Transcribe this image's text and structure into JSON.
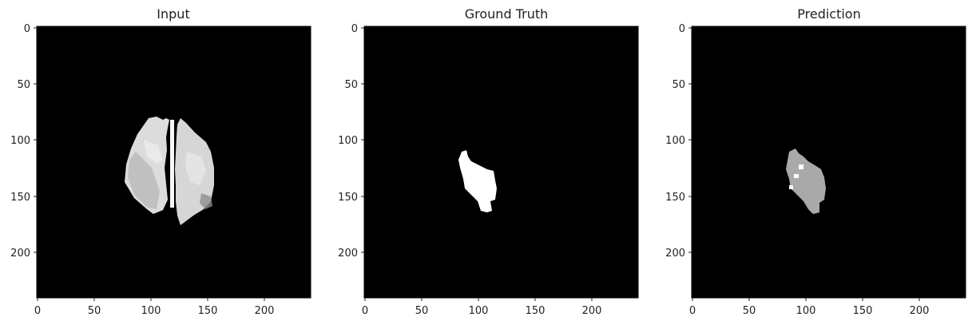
{
  "figure": {
    "panels": [
      {
        "title": "Input",
        "xticks": [
          "0",
          "50",
          "100",
          "150",
          "200"
        ],
        "yticks": [
          "0",
          "50",
          "100",
          "150",
          "200"
        ]
      },
      {
        "title": "Ground Truth",
        "xticks": [
          "0",
          "50",
          "100",
          "150",
          "200"
        ],
        "yticks": [
          "0",
          "50",
          "100",
          "150",
          "200"
        ]
      },
      {
        "title": "Prediction",
        "xticks": [
          "0",
          "50",
          "100",
          "150",
          "200"
        ],
        "yticks": [
          "0",
          "50",
          "100",
          "150",
          "200"
        ]
      }
    ]
  },
  "colors": {
    "background": "#000000",
    "brain_tissue": "#dcdcdc",
    "ground_truth_mask": "#ffffff",
    "prediction_mask": "#a9a9a9"
  }
}
